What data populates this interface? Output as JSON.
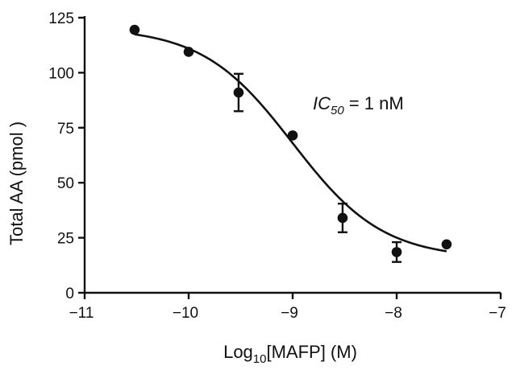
{
  "chart_data": {
    "type": "scatter",
    "xlabel": {
      "prefix": "Log",
      "subscript": "10",
      "suffix": "[MAFP] (M)"
    },
    "ylabel": "Total AA (pmol )",
    "xlim": [
      -11,
      -7
    ],
    "ylim": [
      0,
      125
    ],
    "xticks": [
      -11,
      -10,
      -9,
      -8,
      -7
    ],
    "xtick_labels": [
      "−11",
      "−10",
      "−9",
      "−8",
      "−7"
    ],
    "yticks": [
      0,
      25,
      50,
      75,
      100,
      125
    ],
    "ytick_labels": [
      "0",
      "25",
      "50",
      "75",
      "100",
      "125"
    ],
    "grid": false,
    "points": [
      {
        "x": -10.52,
        "y": 119.5,
        "err": 0
      },
      {
        "x": -10.0,
        "y": 109.5,
        "err": 0
      },
      {
        "x": -9.52,
        "y": 91.0,
        "err": 8.5
      },
      {
        "x": -9.0,
        "y": 71.5,
        "err": 0
      },
      {
        "x": -8.52,
        "y": 34.0,
        "err": 6.5
      },
      {
        "x": -8.0,
        "y": 18.5,
        "err": 4.5
      },
      {
        "x": -7.52,
        "y": 22.0,
        "err": 0
      }
    ],
    "fit": {
      "bottom": 15.5,
      "top": 120.5,
      "logIC50": -9.0,
      "hill": 1.0,
      "x_from": -10.52,
      "x_to": -7.52
    },
    "annotation": {
      "italic_base": "IC",
      "subscript": "50",
      "rest": " = 1 nM"
    },
    "colors": {
      "ink": "#111111"
    }
  }
}
